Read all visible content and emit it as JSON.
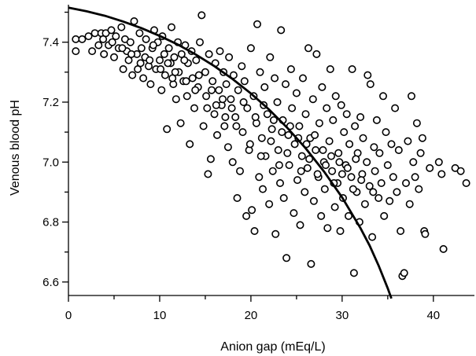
{
  "chart_data": {
    "type": "scatter",
    "title": "",
    "xlabel": "Anion gap (mEq/L)",
    "ylabel": "Venous blood pH",
    "xlim": [
      0,
      44.5
    ],
    "ylim": [
      6.555,
      7.525
    ],
    "xticks": [
      0,
      10,
      20,
      30,
      40
    ],
    "xtick_labels": [
      "0",
      "10",
      "20",
      "30",
      "40"
    ],
    "yticks": [
      6.6,
      6.8,
      7.0,
      7.2,
      7.4
    ],
    "ytick_labels": [
      "6.6",
      "6.8",
      "7.0",
      "7.2",
      "7.4"
    ],
    "grid": false,
    "legend": "none",
    "marker": "open-circle",
    "series": [
      {
        "values_note": "",
        "points": [
          [
            0.8,
            7.41
          ],
          [
            0.8,
            7.37
          ],
          [
            1.5,
            7.41
          ],
          [
            2.2,
            7.42
          ],
          [
            2.6,
            7.37
          ],
          [
            2.9,
            7.43
          ],
          [
            3.3,
            7.39
          ],
          [
            3.6,
            7.43
          ],
          [
            3.9,
            7.36
          ],
          [
            4.1,
            7.43
          ],
          [
            4.4,
            7.39
          ],
          [
            4.7,
            7.44
          ],
          [
            5.0,
            7.35
          ],
          [
            5.2,
            7.42
          ],
          [
            5.5,
            7.38
          ],
          [
            5.8,
            7.45
          ],
          [
            6.0,
            7.31
          ],
          [
            6.2,
            7.41
          ],
          [
            6.4,
            7.37
          ],
          [
            6.6,
            7.34
          ],
          [
            6.8,
            7.4
          ],
          [
            7.0,
            7.29
          ],
          [
            7.2,
            7.47
          ],
          [
            7.5,
            7.36
          ],
          [
            7.6,
            7.31
          ],
          [
            7.8,
            7.43
          ],
          [
            8.0,
            7.38
          ],
          [
            8.2,
            7.28
          ],
          [
            8.4,
            7.35
          ],
          [
            8.5,
            7.41
          ],
          [
            8.8,
            7.32
          ],
          [
            9.0,
            7.26
          ],
          [
            9.2,
            7.38
          ],
          [
            9.4,
            7.44
          ],
          [
            9.6,
            7.31
          ],
          [
            9.8,
            7.4
          ],
          [
            10.0,
            7.34
          ],
          [
            10.2,
            7.24
          ],
          [
            10.3,
            7.42
          ],
          [
            10.5,
            7.36
          ],
          [
            10.6,
            7.29
          ],
          [
            10.8,
            7.11
          ],
          [
            11.0,
            7.38
          ],
          [
            11.2,
            7.33
          ],
          [
            11.3,
            7.45
          ],
          [
            11.5,
            7.26
          ],
          [
            11.6,
            7.35
          ],
          [
            11.8,
            7.21
          ],
          [
            12.0,
            7.4
          ],
          [
            12.1,
            7.3
          ],
          [
            12.3,
            7.13
          ],
          [
            12.4,
            7.36
          ],
          [
            12.6,
            7.27
          ],
          [
            12.8,
            7.39
          ],
          [
            13.0,
            7.22
          ],
          [
            13.1,
            7.33
          ],
          [
            13.3,
            7.06
          ],
          [
            13.5,
            7.37
          ],
          [
            13.6,
            7.28
          ],
          [
            13.8,
            7.18
          ],
          [
            14.0,
            7.34
          ],
          [
            14.2,
            7.25
          ],
          [
            14.4,
            7.4
          ],
          [
            14.6,
            7.49
          ],
          [
            14.8,
            7.12
          ],
          [
            15.0,
            7.3
          ],
          [
            15.1,
            7.22
          ],
          [
            15.3,
            6.96
          ],
          [
            15.4,
            7.36
          ],
          [
            15.6,
            7.01
          ],
          [
            15.8,
            7.27
          ],
          [
            16.0,
            7.16
          ],
          [
            16.1,
            7.33
          ],
          [
            16.3,
            7.09
          ],
          [
            16.5,
            7.24
          ],
          [
            16.6,
            7.37
          ],
          [
            16.8,
            7.19
          ],
          [
            17.0,
            7.3
          ],
          [
            17.1,
            7.12
          ],
          [
            17.3,
            7.26
          ],
          [
            17.5,
            7.05
          ],
          [
            17.6,
            7.35
          ],
          [
            17.8,
            7.21
          ],
          [
            18.0,
            7.0
          ],
          [
            18.1,
            7.29
          ],
          [
            18.3,
            7.15
          ],
          [
            18.5,
            6.88
          ],
          [
            18.6,
            7.24
          ],
          [
            18.8,
            6.97
          ],
          [
            19.0,
            7.32
          ],
          [
            19.1,
            7.1
          ],
          [
            19.3,
            7.27
          ],
          [
            19.5,
            6.82
          ],
          [
            19.6,
            7.18
          ],
          [
            19.8,
            7.04
          ],
          [
            20.0,
            7.38
          ],
          [
            20.1,
            6.84
          ],
          [
            20.3,
            7.22
          ],
          [
            20.4,
            6.77
          ],
          [
            20.6,
            7.13
          ],
          [
            20.7,
            7.46
          ],
          [
            20.9,
            6.95
          ],
          [
            21.0,
            7.3
          ],
          [
            21.2,
            7.08
          ],
          [
            21.3,
            6.91
          ],
          [
            21.5,
            7.25
          ],
          [
            21.6,
            7.02
          ],
          [
            21.8,
            7.16
          ],
          [
            22.0,
            6.86
          ],
          [
            22.1,
            7.35
          ],
          [
            22.3,
            7.11
          ],
          [
            22.4,
            6.97
          ],
          [
            22.6,
            7.28
          ],
          [
            22.7,
            6.76
          ],
          [
            22.9,
            7.2
          ],
          [
            23.0,
            7.04
          ],
          [
            23.2,
            6.93
          ],
          [
            23.3,
            7.44
          ],
          [
            23.5,
            7.14
          ],
          [
            23.6,
            6.88
          ],
          [
            23.8,
            7.26
          ],
          [
            23.9,
            6.68
          ],
          [
            24.1,
            7.09
          ],
          [
            24.2,
            6.99
          ],
          [
            24.4,
            7.31
          ],
          [
            24.5,
            7.18
          ],
          [
            24.7,
            6.83
          ],
          [
            24.8,
            7.06
          ],
          [
            25.0,
            7.23
          ],
          [
            25.1,
            6.94
          ],
          [
            25.3,
            7.12
          ],
          [
            25.4,
            6.79
          ],
          [
            25.6,
            7.02
          ],
          [
            25.7,
            7.28
          ],
          [
            25.9,
            6.9
          ],
          [
            26.0,
            7.16
          ],
          [
            26.2,
            6.98
          ],
          [
            26.3,
            7.38
          ],
          [
            26.5,
            7.08
          ],
          [
            26.6,
            6.66
          ],
          [
            26.8,
            7.21
          ],
          [
            26.9,
            6.87
          ],
          [
            27.1,
            7.04
          ],
          [
            27.2,
            7.36
          ],
          [
            27.4,
            6.95
          ],
          [
            27.5,
            7.13
          ],
          [
            27.7,
            6.82
          ],
          [
            27.8,
            7.25
          ],
          [
            28.0,
            7.0
          ],
          [
            28.1,
            6.91
          ],
          [
            28.3,
            7.18
          ],
          [
            28.4,
            6.78
          ],
          [
            28.6,
            7.07
          ],
          [
            28.7,
            7.31
          ],
          [
            28.9,
            6.97
          ],
          [
            29.0,
            7.14
          ],
          [
            29.2,
            6.85
          ],
          [
            29.3,
            7.22
          ],
          [
            29.5,
            6.93
          ],
          [
            29.6,
            7.03
          ],
          [
            29.8,
            6.77
          ],
          [
            29.9,
            7.19
          ],
          [
            30.1,
            6.88
          ],
          [
            30.2,
            7.1
          ],
          [
            30.4,
            6.99
          ],
          [
            30.5,
            7.16
          ],
          [
            30.7,
            6.82
          ],
          [
            30.8,
            7.06
          ],
          [
            31.0,
            6.95
          ],
          [
            31.1,
            7.31
          ],
          [
            31.3,
            6.63
          ],
          [
            31.4,
            7.12
          ],
          [
            31.6,
            6.9
          ],
          [
            31.7,
            7.03
          ],
          [
            31.9,
            6.8
          ],
          [
            32.0,
            7.15
          ],
          [
            32.2,
            6.96
          ],
          [
            32.3,
            7.08
          ],
          [
            32.5,
            6.86
          ],
          [
            32.7,
            7.0
          ],
          [
            32.8,
            7.29
          ],
          [
            33.0,
            6.92
          ],
          [
            33.1,
            7.26
          ],
          [
            33.3,
            6.75
          ],
          [
            33.5,
            7.05
          ],
          [
            33.6,
            6.97
          ],
          [
            33.8,
            7.14
          ],
          [
            34.0,
            6.88
          ],
          [
            34.1,
            7.03
          ],
          [
            34.3,
            6.93
          ],
          [
            34.5,
            7.22
          ],
          [
            34.6,
            6.82
          ],
          [
            34.8,
            7.1
          ],
          [
            35.0,
            6.99
          ],
          [
            35.2,
            6.87
          ],
          [
            35.4,
            7.06
          ],
          [
            35.6,
            6.95
          ],
          [
            35.8,
            7.18
          ],
          [
            36.0,
            6.9
          ],
          [
            36.2,
            7.04
          ],
          [
            36.4,
            6.77
          ],
          [
            36.6,
            6.62
          ],
          [
            36.8,
            6.63
          ],
          [
            37.0,
            6.93
          ],
          [
            37.2,
            7.07
          ],
          [
            37.4,
            6.86
          ],
          [
            37.6,
            7.22
          ],
          [
            37.8,
            7.0
          ],
          [
            38.0,
            6.95
          ],
          [
            38.2,
            7.13
          ],
          [
            38.4,
            6.91
          ],
          [
            38.6,
            7.03
          ],
          [
            38.8,
            7.08
          ],
          [
            39.0,
            6.77
          ],
          [
            39.1,
            6.76
          ],
          [
            39.6,
            6.98
          ],
          [
            40.6,
            7.0
          ],
          [
            40.9,
            6.96
          ],
          [
            41.1,
            6.71
          ],
          [
            42.4,
            6.98
          ],
          [
            43.0,
            6.97
          ],
          [
            43.6,
            6.93
          ],
          [
            9.3,
            7.39
          ],
          [
            10.1,
            7.31
          ],
          [
            11.4,
            7.28
          ],
          [
            12.7,
            7.34
          ],
          [
            14.3,
            7.29
          ],
          [
            15.7,
            7.24
          ],
          [
            16.9,
            7.21
          ],
          [
            17.9,
            7.18
          ],
          [
            19.2,
            7.2
          ],
          [
            20.5,
            7.15
          ],
          [
            21.4,
            7.19
          ],
          [
            22.5,
            7.14
          ],
          [
            23.4,
            7.1
          ],
          [
            24.3,
            7.12
          ],
          [
            25.2,
            7.08
          ],
          [
            26.1,
            7.06
          ],
          [
            27.0,
            7.09
          ],
          [
            27.9,
            7.04
          ],
          [
            28.8,
            7.02
          ],
          [
            29.7,
            7.0
          ],
          [
            30.6,
            6.98
          ],
          [
            31.5,
            7.01
          ],
          [
            19.9,
            7.06
          ],
          [
            21.1,
            7.02
          ],
          [
            22.2,
            7.07
          ],
          [
            23.1,
            6.99
          ],
          [
            24.0,
            7.03
          ],
          [
            25.5,
            6.97
          ],
          [
            26.4,
            7.01
          ],
          [
            27.3,
            6.96
          ],
          [
            28.2,
            6.99
          ],
          [
            29.1,
            6.93
          ],
          [
            30.0,
            6.96
          ],
          [
            31.2,
            6.91
          ],
          [
            32.1,
            6.94
          ],
          [
            33.4,
            6.9
          ],
          [
            18.4,
            7.12
          ],
          [
            17.2,
            7.15
          ],
          [
            16.2,
            7.19
          ],
          [
            15.2,
            7.18
          ],
          [
            13.9,
            7.24
          ],
          [
            12.9,
            7.27
          ],
          [
            11.7,
            7.3
          ],
          [
            10.9,
            7.33
          ],
          [
            8.9,
            7.34
          ],
          [
            7.9,
            7.33
          ],
          [
            6.9,
            7.36
          ],
          [
            5.9,
            7.38
          ],
          [
            4.8,
            7.4
          ],
          [
            3.8,
            7.41
          ]
        ]
      }
    ],
    "curve": {
      "name": "",
      "points": [
        [
          0,
          7.515
        ],
        [
          2,
          7.503
        ],
        [
          4,
          7.488
        ],
        [
          6,
          7.469
        ],
        [
          8,
          7.447
        ],
        [
          10,
          7.421
        ],
        [
          12,
          7.392
        ],
        [
          14,
          7.358
        ],
        [
          16,
          7.32
        ],
        [
          18,
          7.277
        ],
        [
          20,
          7.229
        ],
        [
          22,
          7.175
        ],
        [
          24,
          7.114
        ],
        [
          26,
          7.046
        ],
        [
          28,
          6.969
        ],
        [
          30,
          6.882
        ],
        [
          32,
          6.78
        ],
        [
          33,
          6.722
        ],
        [
          34,
          6.655
        ],
        [
          35,
          6.579
        ],
        [
          35.4,
          6.545
        ]
      ]
    }
  }
}
